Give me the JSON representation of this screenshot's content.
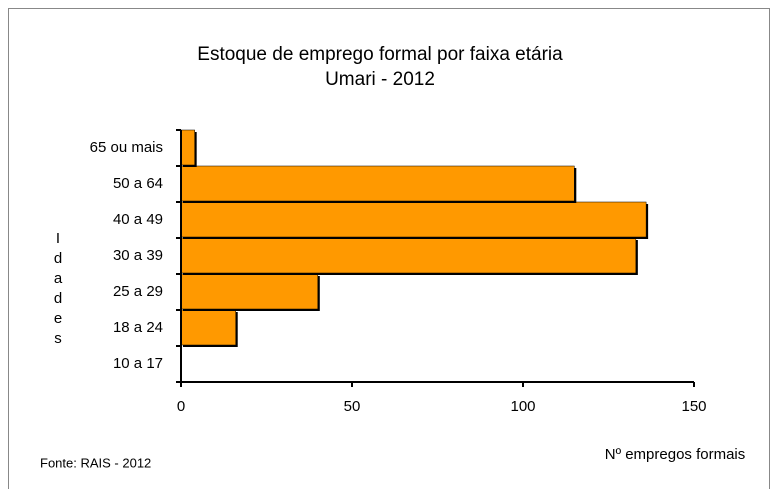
{
  "chart_data": {
    "type": "barh",
    "title": "Estoque de emprego formal por faixa etária",
    "subtitle": "Umari - 2012",
    "ylabel": "Idades",
    "xlabel": "Nº empregos formais",
    "source": "Fonte: RAIS - 2012",
    "categories": [
      "10 a 17",
      "18 a 24",
      "25 a 29",
      "30 a 39",
      "40 a 49",
      "50 a 64",
      "65 ou mais"
    ],
    "values": [
      0,
      16,
      40,
      133,
      136,
      115,
      4
    ],
    "color": "#ff9900",
    "xlim": [
      0,
      150
    ],
    "xticks": [
      0,
      50,
      100,
      150
    ],
    "grid": false
  }
}
